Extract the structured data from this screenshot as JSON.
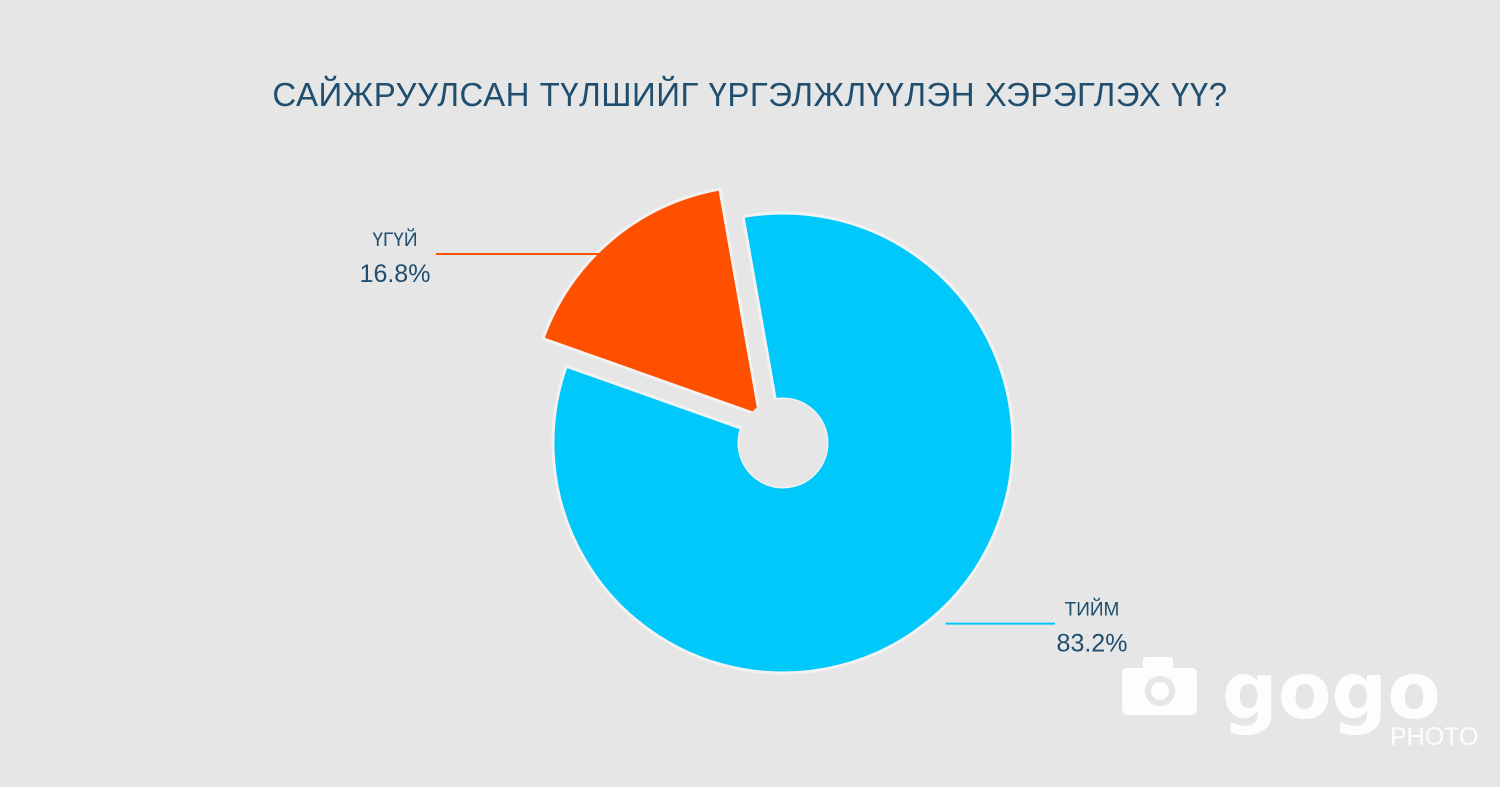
{
  "chart_data": {
    "type": "pie",
    "title": "САЙЖРУУЛСАН ТҮЛШИЙГ ҮРГЭЛЖЛҮҮЛЭН ХЭРЭГЛЭХ ҮҮ?",
    "slices": [
      {
        "label": "ТИЙМ",
        "value": 83.2,
        "value_label": "83.2%",
        "color": "#00c8fa"
      },
      {
        "label": "ҮГҮЙ",
        "value": 16.8,
        "value_label": "16.8%",
        "color": "#ff5000"
      }
    ],
    "exploded_slice": "ҮГҮЙ",
    "donut_hole": true
  },
  "watermark": {
    "brand": "gogo",
    "sub": "PHOTO",
    "icon": "camera-icon"
  },
  "colors": {
    "background": "#e6e6e6",
    "text": "#1f4e6e",
    "divider": "#f2f2f2"
  }
}
